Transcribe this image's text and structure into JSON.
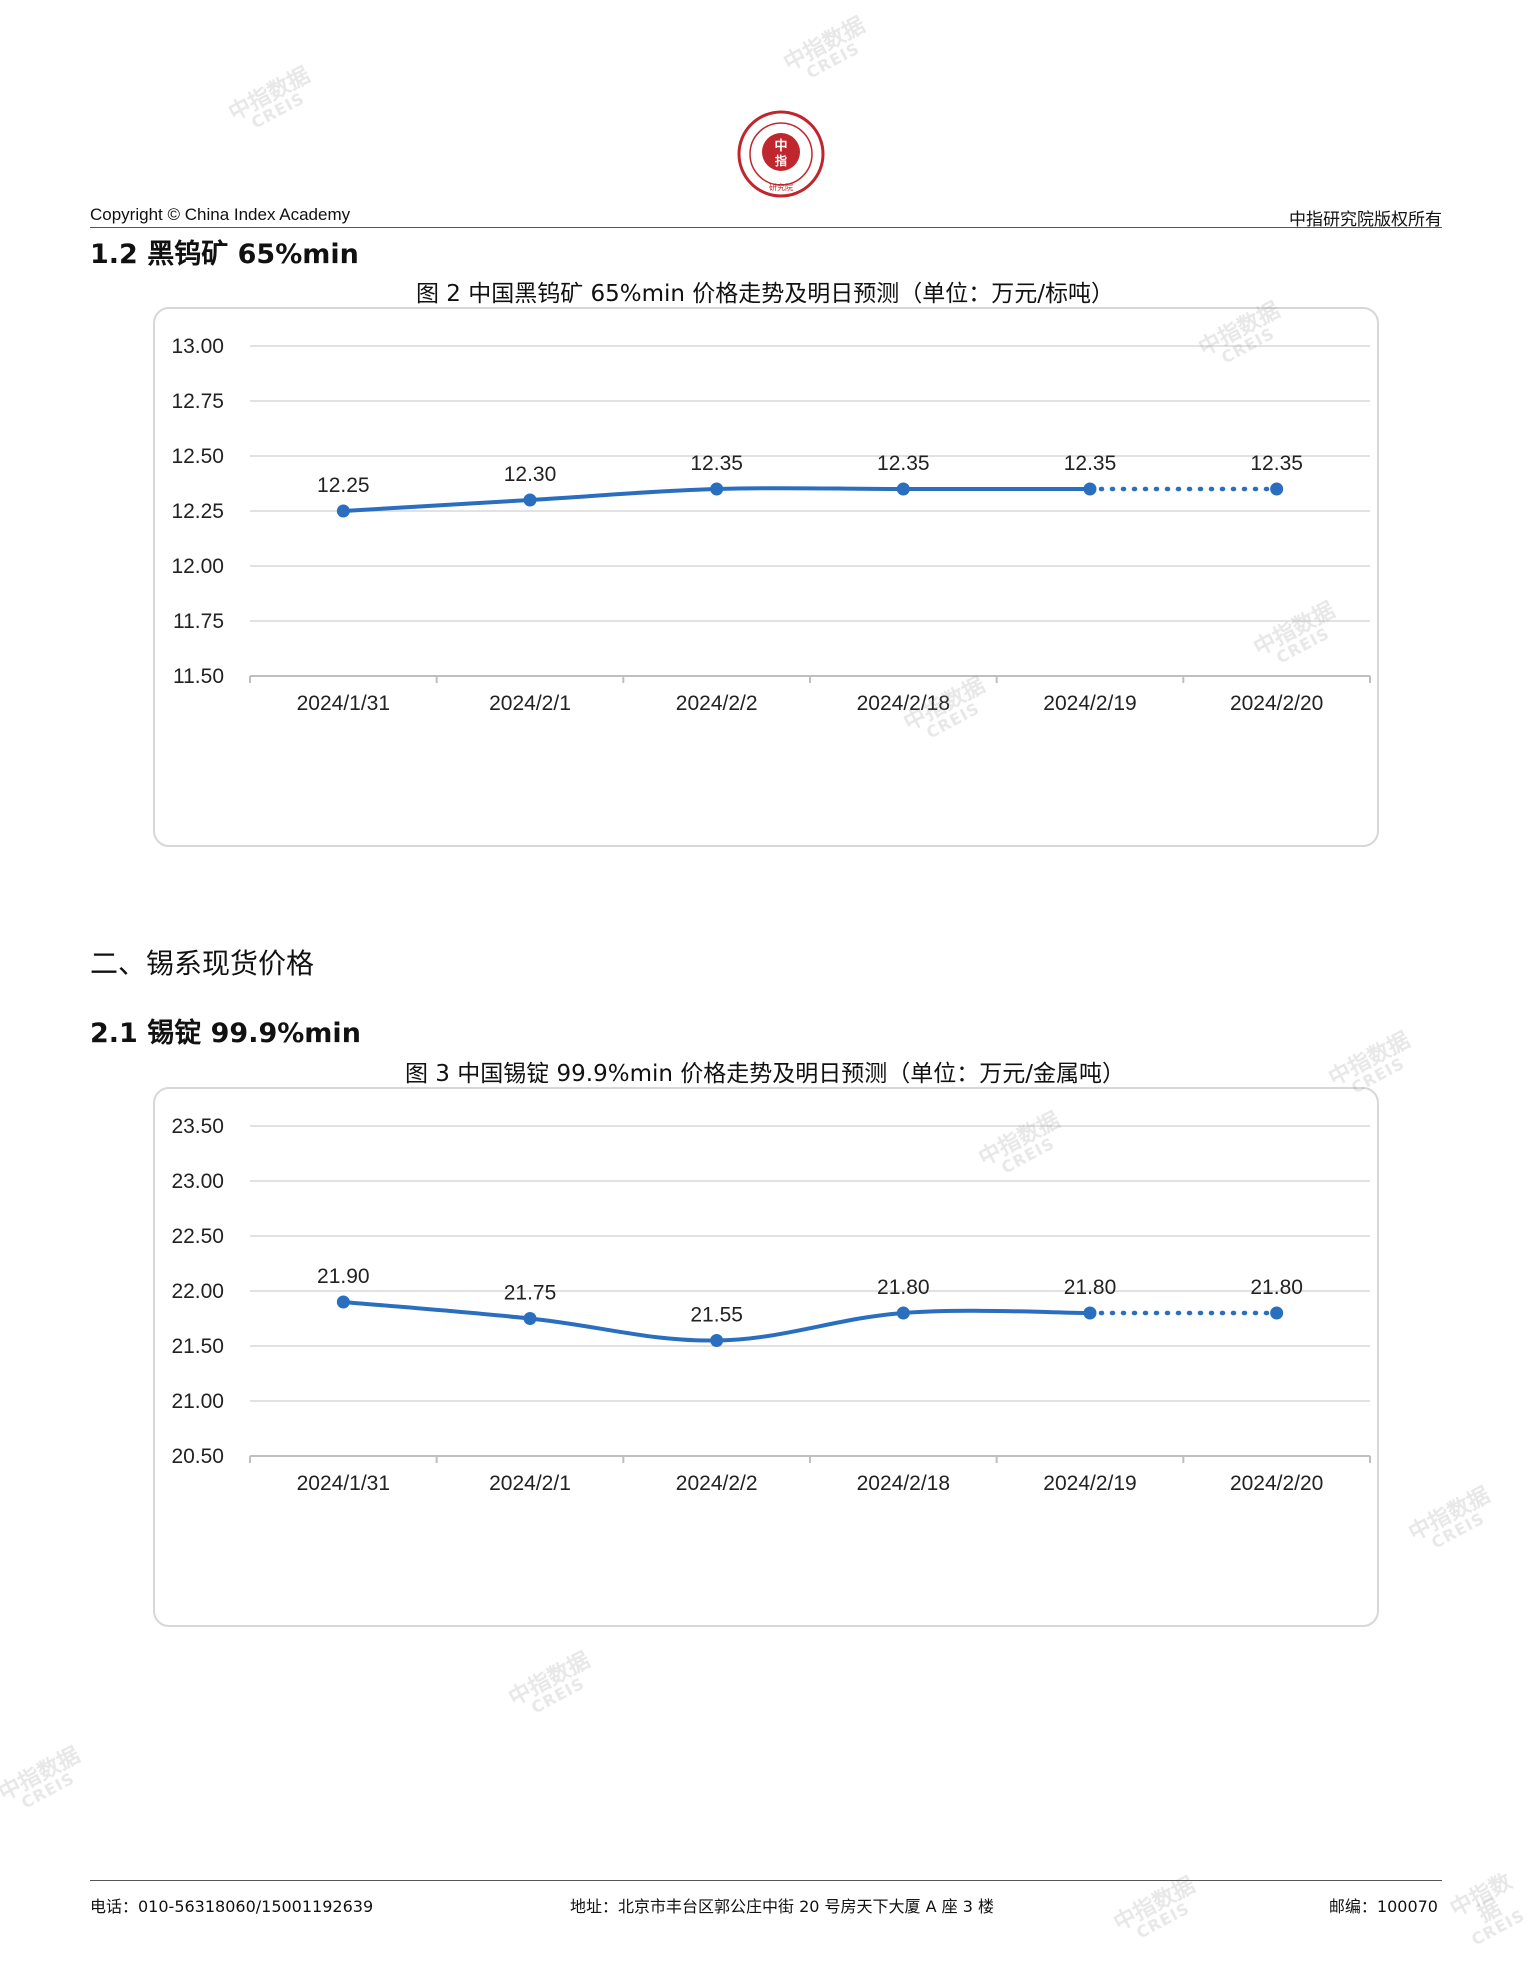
{
  "header": {
    "copyright": "Copyright © China Index Academy",
    "rights": "中指研究院版权所有",
    "logo_text": "CHINA INDEX ACADEMY 中指 研究院"
  },
  "section_1_2": "1.2 黑钨矿 65%min",
  "section_2": "二、锡系现货价格",
  "section_2_1": "2.1 锡锭 99.9%min",
  "watermark": {
    "line1": "中指数据",
    "line2": "CREIS"
  },
  "colors": {
    "line": "#2a6fbf",
    "grid": "#d9d9d9",
    "axis": "#bfbfbf"
  },
  "chart_data": [
    {
      "type": "line",
      "title": "图 2 中国黑钨矿 65%min 价格走势及明日预测（单位：万元/标吨）",
      "categories": [
        "2024/1/31",
        "2024/2/1",
        "2024/2/2",
        "2024/2/18",
        "2024/2/19",
        "2024/2/20"
      ],
      "values": [
        12.25,
        12.3,
        12.35,
        12.35,
        12.35,
        12.35
      ],
      "data_labels": [
        "12.25",
        "12.30",
        "12.35",
        "12.35",
        "12.35",
        "12.35"
      ],
      "forecast_from_index": 4,
      "ylim": [
        11.5,
        13.0
      ],
      "yticks": [
        "11.50",
        "11.75",
        "12.00",
        "12.25",
        "12.50",
        "12.75",
        "13.00"
      ],
      "grid": true
    },
    {
      "type": "line",
      "title": "图 3 中国锡锭 99.9%min 价格走势及明日预测（单位：万元/金属吨）",
      "categories": [
        "2024/1/31",
        "2024/2/1",
        "2024/2/2",
        "2024/2/18",
        "2024/2/19",
        "2024/2/20"
      ],
      "values": [
        21.9,
        21.75,
        21.55,
        21.8,
        21.8,
        21.8
      ],
      "data_labels": [
        "21.90",
        "21.75",
        "21.55",
        "21.80",
        "21.80",
        "21.80"
      ],
      "forecast_from_index": 4,
      "ylim": [
        20.5,
        23.5
      ],
      "yticks": [
        "20.50",
        "21.00",
        "21.50",
        "22.00",
        "22.50",
        "23.00",
        "23.50"
      ],
      "grid": true
    }
  ],
  "footer": {
    "phone": "电话：010-56318060/15001192639",
    "address": "地址：北京市丰台区郭公庄中街 20 号房天下大厦 A 座 3 楼",
    "postcode": "邮编：100070"
  }
}
